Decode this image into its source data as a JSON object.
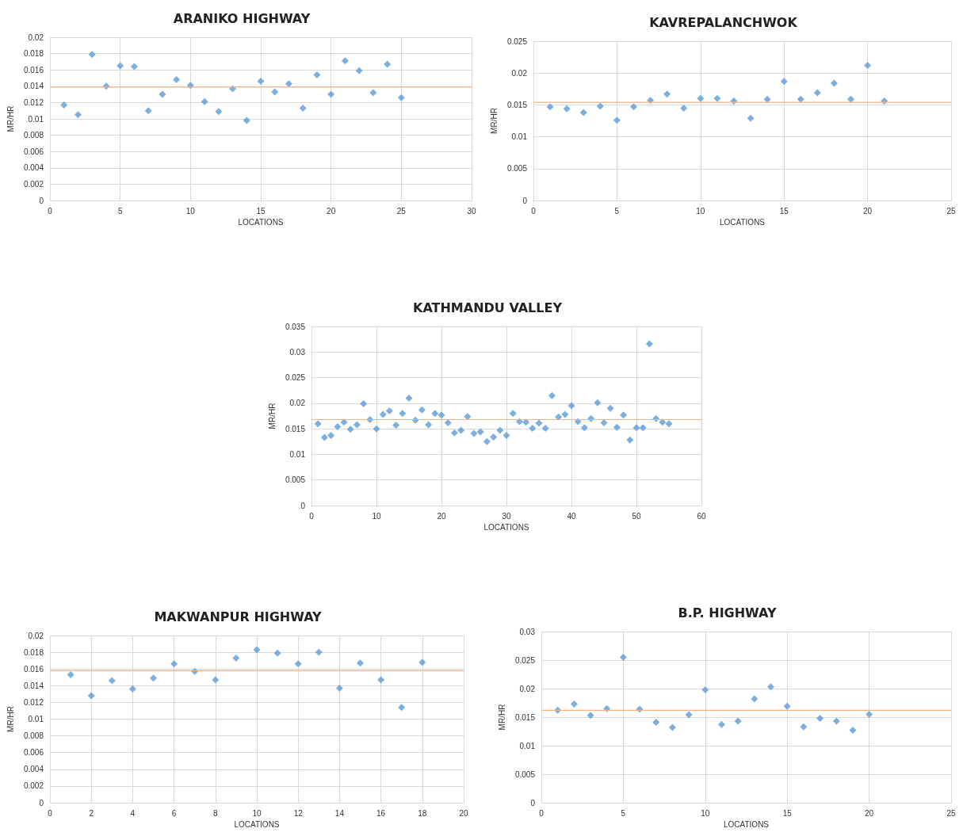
{
  "chart_data": [
    {
      "type": "scatter",
      "title": "ARANIKO HIGHWAY",
      "xlabel": "LOCATIONS",
      "ylabel": "MR/HR",
      "marker": "diamond",
      "grid": true,
      "xlim": [
        0,
        30
      ],
      "xticks": [
        0,
        5,
        10,
        15,
        20,
        25,
        30
      ],
      "ylim": [
        0,
        0.02
      ],
      "yticks": [
        0,
        0.002,
        0.004,
        0.006,
        0.008,
        0.01,
        0.012,
        0.014,
        0.016,
        0.018,
        0.02
      ],
      "x": [
        1,
        2,
        3,
        4,
        5,
        6,
        7,
        8,
        9,
        10,
        11,
        12,
        13,
        14,
        15,
        16,
        17,
        18,
        19,
        20,
        21,
        22,
        23,
        24,
        25
      ],
      "series": [
        {
          "color": "#5b9bd5",
          "values": [
            0.0117,
            0.0105,
            0.0179,
            0.014,
            0.0165,
            0.0164,
            0.011,
            0.013,
            0.0148,
            0.0141,
            0.0121,
            0.0109,
            0.0137,
            0.0098,
            0.0146,
            0.0133,
            0.0143,
            0.0113,
            0.0154,
            0.013,
            0.0171,
            0.0159,
            0.0132,
            0.0167,
            0.0126
          ]
        }
      ],
      "ref_lines": [
        {
          "axis": "y",
          "value": 0.0139,
          "color": "#f4b183"
        }
      ]
    },
    {
      "type": "scatter",
      "title": "KAVREPALANCHWOK",
      "xlabel": "LOCATIONS",
      "ylabel": "MR/HR",
      "marker": "diamond",
      "grid": true,
      "xlim": [
        0,
        25
      ],
      "xticks": [
        0,
        5,
        10,
        15,
        20,
        25
      ],
      "ylim": [
        0,
        0.025
      ],
      "yticks": [
        0,
        0.005,
        0.01,
        0.015,
        0.02,
        0.025
      ],
      "x": [
        1,
        2,
        3,
        4,
        5,
        6,
        7,
        8,
        9,
        10,
        11,
        12,
        13,
        14,
        15,
        16,
        17,
        18,
        19,
        20,
        21
      ],
      "series": [
        {
          "color": "#5b9bd5",
          "values": [
            0.0147,
            0.0144,
            0.0138,
            0.0148,
            0.0126,
            0.0147,
            0.0157,
            0.0167,
            0.0145,
            0.016,
            0.016,
            0.0156,
            0.0129,
            0.0159,
            0.0187,
            0.0159,
            0.0169,
            0.0184,
            0.0159,
            0.0212,
            0.0156
          ]
        }
      ],
      "ref_lines": [
        {
          "axis": "y",
          "value": 0.0154,
          "color": "#f4b183"
        }
      ]
    },
    {
      "type": "scatter",
      "title": "KATHMANDU VALLEY",
      "xlabel": "LOCATIONS",
      "ylabel": "MR/HR",
      "marker": "diamond",
      "grid": true,
      "xlim": [
        0,
        60
      ],
      "xticks": [
        0,
        10,
        20,
        30,
        40,
        50,
        60
      ],
      "ylim": [
        0,
        0.035
      ],
      "yticks": [
        0,
        0.005,
        0.01,
        0.015,
        0.02,
        0.025,
        0.03,
        0.035
      ],
      "x": [
        1,
        2,
        3,
        4,
        5,
        6,
        7,
        8,
        9,
        10,
        11,
        12,
        13,
        14,
        15,
        16,
        17,
        18,
        19,
        20,
        21,
        22,
        23,
        24,
        25,
        26,
        27,
        28,
        29,
        30,
        31,
        32,
        33,
        34,
        35,
        36,
        37,
        38,
        39,
        40,
        41,
        42,
        43,
        44,
        45,
        46,
        47,
        48,
        49,
        50,
        51,
        52,
        53,
        54,
        55
      ],
      "series": [
        {
          "color": "#5b9bd5",
          "values": [
            0.016,
            0.0133,
            0.0137,
            0.0154,
            0.0163,
            0.0149,
            0.0158,
            0.0199,
            0.0168,
            0.015,
            0.0178,
            0.0185,
            0.0157,
            0.018,
            0.021,
            0.0167,
            0.0187,
            0.0158,
            0.018,
            0.0177,
            0.0162,
            0.0142,
            0.0147,
            0.0174,
            0.0141,
            0.0144,
            0.0125,
            0.0134,
            0.0147,
            0.0137,
            0.018,
            0.0164,
            0.0163,
            0.0151,
            0.0161,
            0.0151,
            0.0215,
            0.0173,
            0.0178,
            0.0195,
            0.0164,
            0.0152,
            0.017,
            0.0201,
            0.0162,
            0.019,
            0.0153,
            0.0177,
            0.0128,
            0.0152,
            0.0152,
            0.0316,
            0.017,
            0.0163,
            0.016
          ]
        }
      ],
      "ref_lines": [
        {
          "axis": "y",
          "value": 0.0168,
          "color": "#f4b183"
        }
      ]
    },
    {
      "type": "scatter",
      "title": "MAKWANPUR HIGHWAY",
      "xlabel": "LOCATIONS",
      "ylabel": "MR/HR",
      "marker": "diamond",
      "grid": true,
      "xlim": [
        0,
        20
      ],
      "xticks": [
        0,
        2,
        4,
        6,
        8,
        10,
        12,
        14,
        16,
        18,
        20
      ],
      "ylim": [
        0,
        0.02
      ],
      "yticks": [
        0,
        0.002,
        0.004,
        0.006,
        0.008,
        0.01,
        0.012,
        0.014,
        0.016,
        0.018,
        0.02
      ],
      "x": [
        1,
        2,
        3,
        4,
        5,
        6,
        7,
        8,
        9,
        10,
        11,
        12,
        13,
        14,
        15,
        16,
        17,
        18
      ],
      "series": [
        {
          "color": "#5b9bd5",
          "values": [
            0.0153,
            0.0128,
            0.0146,
            0.0136,
            0.0149,
            0.0166,
            0.0157,
            0.0147,
            0.0173,
            0.0183,
            0.0179,
            0.0166,
            0.018,
            0.0137,
            0.0167,
            0.0147,
            0.0114,
            0.0168
          ]
        }
      ],
      "ref_lines": [
        {
          "axis": "y",
          "value": 0.0158,
          "color": "#f4b183"
        }
      ]
    },
    {
      "type": "scatter",
      "title": "B.P. HIGHWAY",
      "xlabel": "LOCATIONS",
      "ylabel": "MR/HR",
      "marker": "diamond",
      "grid": true,
      "xlim": [
        0,
        25
      ],
      "xticks": [
        0,
        5,
        10,
        15,
        20,
        25
      ],
      "ylim": [
        0,
        0.03
      ],
      "yticks": [
        0,
        0.005,
        0.01,
        0.015,
        0.02,
        0.025,
        0.03
      ],
      "x": [
        1,
        2,
        3,
        4,
        5,
        6,
        7,
        8,
        9,
        10,
        11,
        12,
        13,
        14,
        15,
        16,
        17,
        18,
        19,
        20
      ],
      "series": [
        {
          "color": "#5b9bd5",
          "values": [
            0.0162,
            0.0173,
            0.0153,
            0.0165,
            0.0255,
            0.0164,
            0.0141,
            0.0132,
            0.0154,
            0.0198,
            0.0137,
            0.0143,
            0.0182,
            0.0203,
            0.0169,
            0.0133,
            0.0148,
            0.0143,
            0.0127,
            0.0155
          ]
        }
      ],
      "ref_lines": [
        {
          "axis": "y",
          "value": 0.0162,
          "color": "#f4b183"
        }
      ]
    }
  ]
}
